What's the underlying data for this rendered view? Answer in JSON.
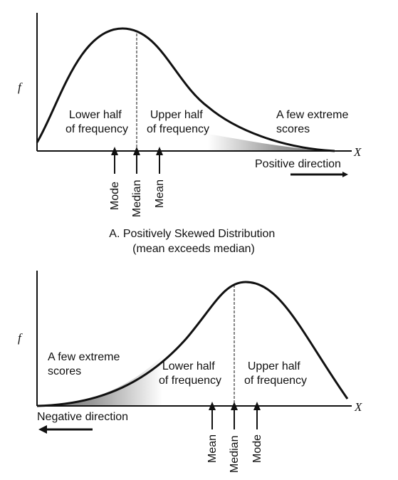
{
  "panel_a": {
    "y_label": "f",
    "x_label": "X",
    "lower_half": [
      "Lower half",
      "of frequency"
    ],
    "upper_half": [
      "Upper half",
      "of frequency"
    ],
    "extreme": [
      "A few extreme",
      "scores"
    ],
    "direction": "Positive direction",
    "markers": {
      "mode": "Mode",
      "median": "Median",
      "mean": "Mean"
    },
    "caption": [
      "A. Positively Skewed Distribution",
      "(mean exceeds median)"
    ]
  },
  "panel_b": {
    "y_label": "f",
    "x_label": "X",
    "extreme": [
      "A few extreme",
      "scores"
    ],
    "lower_half": [
      "Lower half",
      "of frequency"
    ],
    "upper_half": [
      "Upper half",
      "of frequency"
    ],
    "direction": "Negative direction",
    "markers": {
      "mean": "Mean",
      "median": "Median",
      "mode": "Mode"
    }
  }
}
